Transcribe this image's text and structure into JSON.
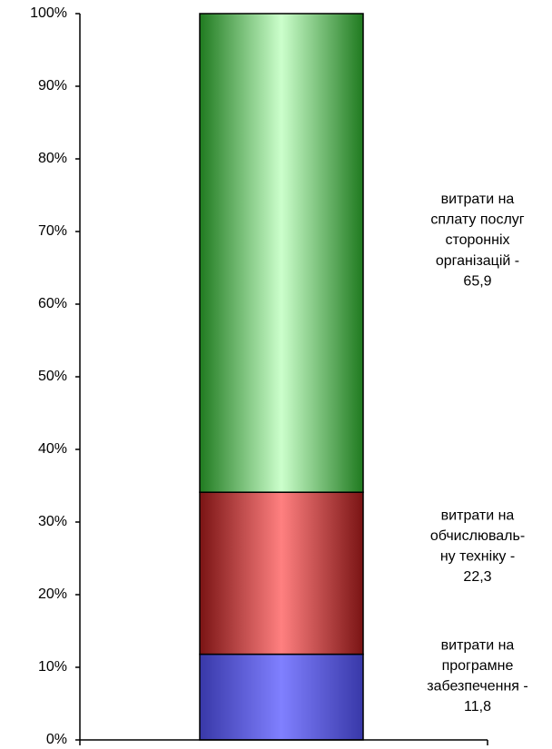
{
  "chart_data": {
    "type": "stacked_bar_100",
    "categories": [
      null
    ],
    "ylim": [
      0,
      100
    ],
    "yticks": [
      {
        "value": 0,
        "label": "0%"
      },
      {
        "value": 10,
        "label": "10%"
      },
      {
        "value": 20,
        "label": "20%"
      },
      {
        "value": 30,
        "label": "30%"
      },
      {
        "value": 40,
        "label": "40%"
      },
      {
        "value": 50,
        "label": "50%"
      },
      {
        "value": 60,
        "label": "60%"
      },
      {
        "value": 70,
        "label": "70%"
      },
      {
        "value": 80,
        "label": "80%"
      },
      {
        "value": 90,
        "label": "90%"
      },
      {
        "value": 100,
        "label": "100%"
      }
    ],
    "series": [
      {
        "name": [
          "витрати на",
          "програмне",
          "забезпечення -"
        ],
        "color": [
          "#3838a8",
          "#8080ff"
        ],
        "values": [
          11.8
        ],
        "value_labels": [
          "11,8"
        ]
      },
      {
        "name": [
          "витрати на",
          "обчислюваль-",
          "ну техніку -"
        ],
        "color": [
          "#7a1414",
          "#ff8080"
        ],
        "values": [
          22.3
        ],
        "value_labels": [
          "22,3"
        ]
      },
      {
        "name": [
          "витрати на",
          "сплату послуг",
          "сторонніх",
          "організацій -"
        ],
        "color": [
          "#1f7a1f",
          "#ccffcc"
        ],
        "values": [
          65.9
        ],
        "value_labels": [
          "65,9"
        ]
      }
    ]
  }
}
